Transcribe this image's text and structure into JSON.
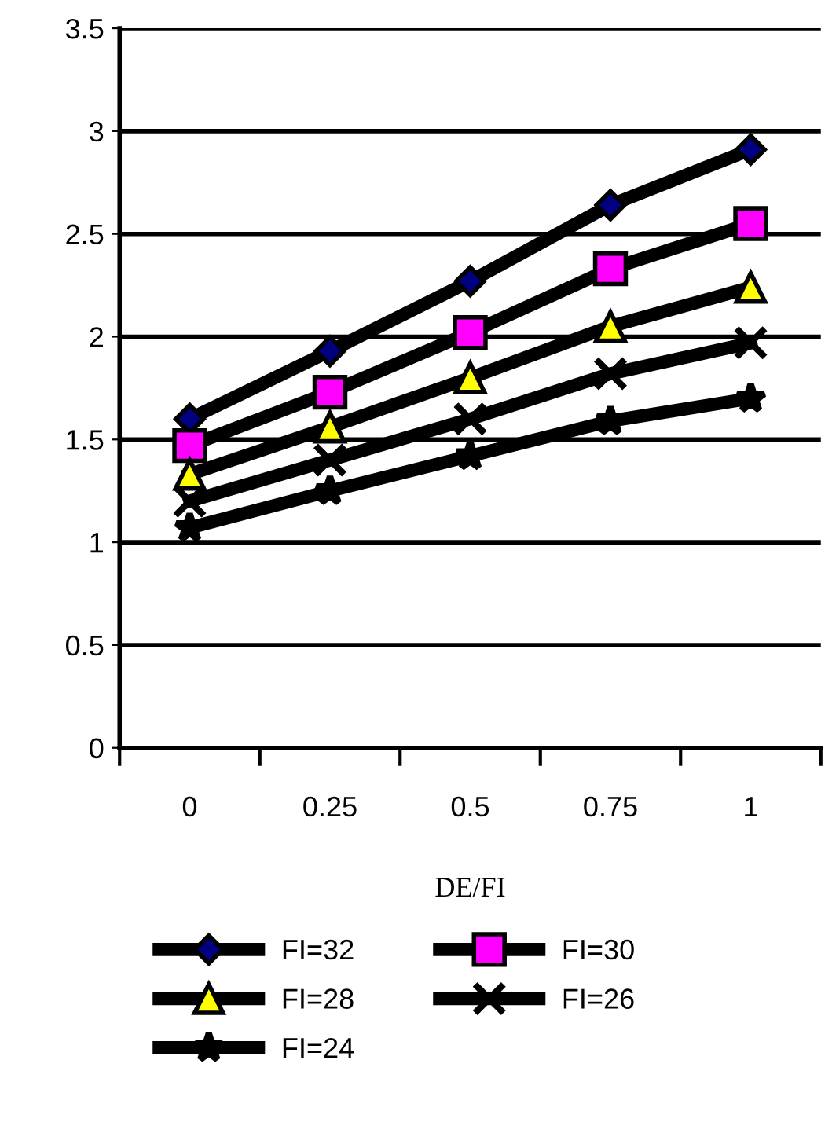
{
  "chart_data": {
    "type": "line",
    "xlabel": "DE/FI",
    "categories": [
      "0",
      "0.25",
      "0.5",
      "0.75",
      "1"
    ],
    "ylim": [
      0,
      3.5
    ],
    "yticks": [
      0,
      0.5,
      1,
      1.5,
      2,
      2.5,
      3,
      3.5
    ],
    "grid": "y",
    "legend": "bottom",
    "series": [
      {
        "name": "FI=32",
        "color": "#000080",
        "marker": "diamond",
        "values": [
          1.6,
          1.93,
          2.27,
          2.64,
          2.91
        ]
      },
      {
        "name": "FI=30",
        "color": "#ff00ff",
        "marker": "square",
        "values": [
          1.47,
          1.73,
          2.02,
          2.33,
          2.55
        ]
      },
      {
        "name": "FI=28",
        "color": "#ffff00",
        "marker": "triangle",
        "values": [
          1.33,
          1.56,
          1.8,
          2.05,
          2.24
        ]
      },
      {
        "name": "FI=26",
        "color": "#000000",
        "marker": "cross",
        "values": [
          1.2,
          1.4,
          1.6,
          1.82,
          1.97
        ]
      },
      {
        "name": "FI=24",
        "color": "#000000",
        "marker": "star",
        "values": [
          1.07,
          1.25,
          1.42,
          1.59,
          1.7
        ]
      }
    ]
  }
}
